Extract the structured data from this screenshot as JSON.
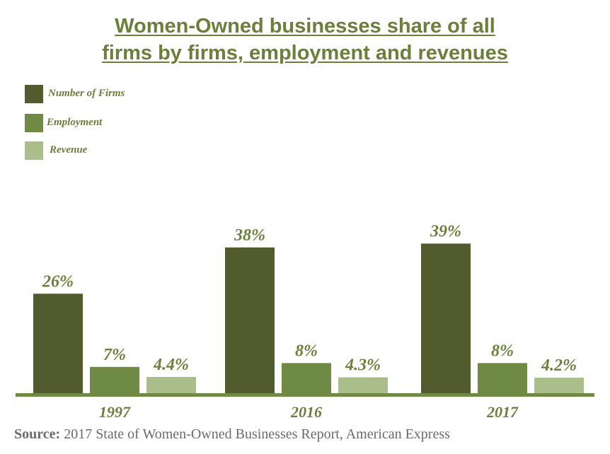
{
  "title_line1": "Women-Owned businesses share of all",
  "title_line2": "firms by firms, employment and revenues",
  "source_label": "Source:",
  "source_text": "2017 State of Women-Owned Businesses Report, American Express",
  "colors": {
    "title": "#6b7f3b",
    "firms": "#525b2e",
    "employment": "#6e8a44",
    "revenue": "#a9be8a",
    "axis": "#6e8a44",
    "labels": "#6b7f3b"
  },
  "chart_data": {
    "type": "bar",
    "title": "Women-Owned businesses share of all firms by firms, employment and revenues",
    "categories": [
      "1997",
      "2016",
      "2017"
    ],
    "series": [
      {
        "name": "Number of Firms",
        "values": [
          26,
          38,
          39
        ],
        "labels": [
          "26%",
          "38%",
          "39%"
        ],
        "color": "#525b2e"
      },
      {
        "name": "Employment",
        "values": [
          7,
          8,
          8
        ],
        "labels": [
          "7%",
          "8%",
          "8%"
        ],
        "color": "#6e8a44"
      },
      {
        "name": "Revenue",
        "values": [
          4.4,
          4.3,
          4.2
        ],
        "labels": [
          "4.4%",
          "4.3%",
          "4.2%"
        ],
        "color": "#a9be8a"
      }
    ],
    "ylim": [
      0,
      40
    ],
    "grid": false,
    "legend_position": "top-left"
  }
}
